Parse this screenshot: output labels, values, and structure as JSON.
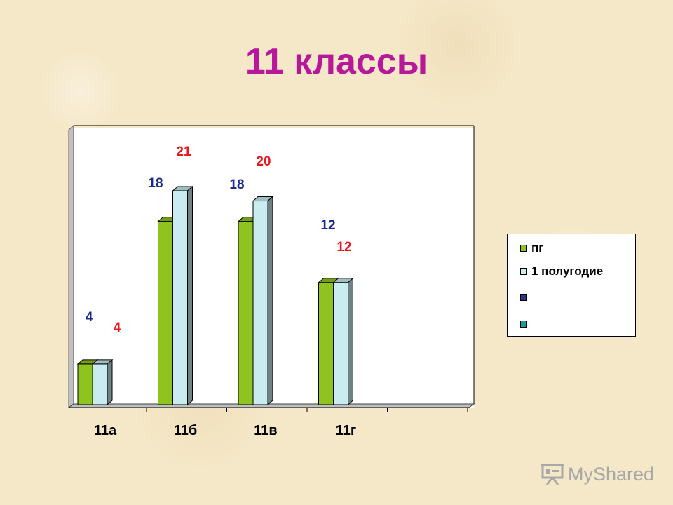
{
  "title": "11 классы",
  "chart_data": {
    "type": "bar",
    "categories": [
      "11а",
      "11б",
      "11в",
      "11г"
    ],
    "series": [
      {
        "name": "пг",
        "values": [
          4,
          18,
          18,
          12
        ],
        "color": "#8fc31f",
        "label_color": "#1c2a8a"
      },
      {
        "name": "1 полугодие",
        "values": [
          4,
          21,
          20,
          12
        ],
        "color": "#c8ecf0",
        "label_color": "#e8191e"
      }
    ],
    "legend": {
      "position": "right",
      "entries": [
        "пг",
        "1 полугодие",
        "",
        ""
      ],
      "colors": [
        "#8fc31f",
        "#c8ecf0",
        "#2a3590",
        "#1a9a9a"
      ]
    },
    "ylim": [
      0,
      25
    ],
    "grid": false,
    "style": "3d-column"
  },
  "watermark": {
    "text": "MyShared"
  }
}
